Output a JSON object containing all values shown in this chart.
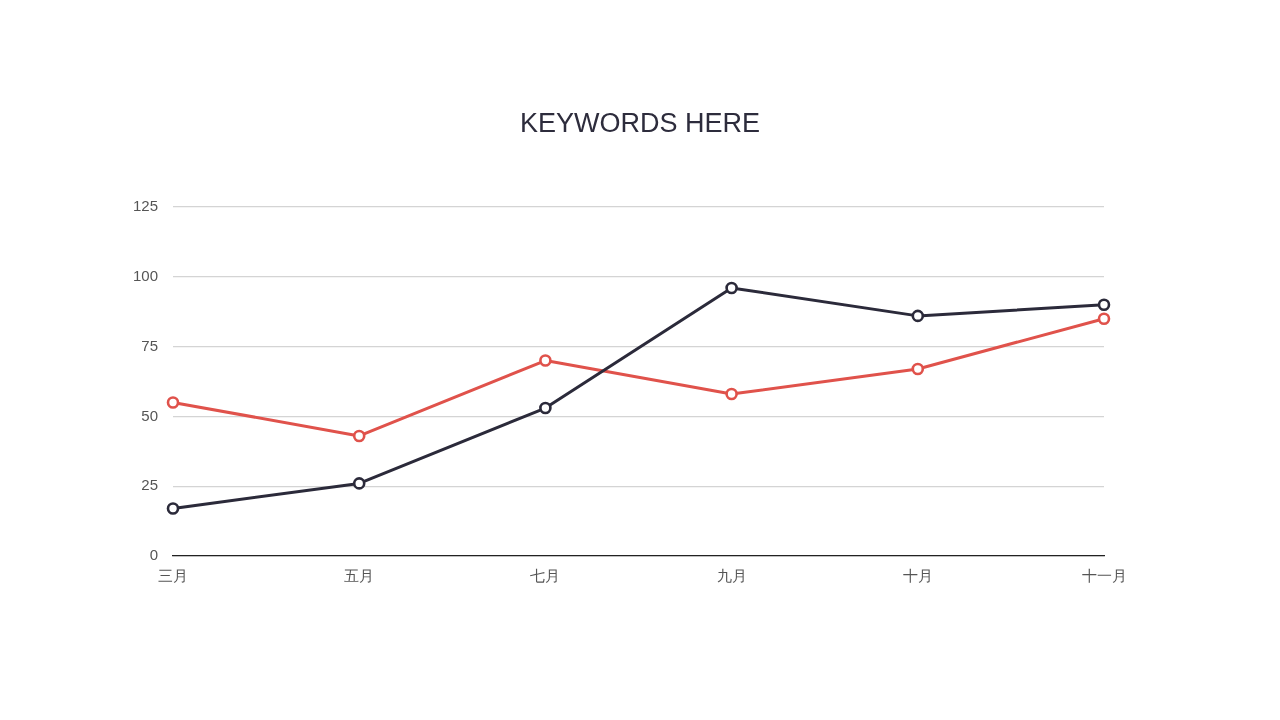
{
  "chart_data": {
    "type": "line",
    "title": "KEYWORDS HERE",
    "categories": [
      "三月",
      "五月",
      "七月",
      "九月",
      "十月",
      "十一月"
    ],
    "series": [
      {
        "color": "#2b2a3a",
        "values": [
          17,
          26,
          53,
          96,
          86,
          90
        ]
      },
      {
        "color": "#e0524b",
        "values": [
          55,
          43,
          70,
          58,
          67,
          85
        ]
      }
    ],
    "ylim": [
      0,
      125
    ],
    "yticks": [
      0,
      25,
      50,
      75,
      100,
      125
    ],
    "grid": "y",
    "marker": "circle",
    "line_style": "solid"
  }
}
